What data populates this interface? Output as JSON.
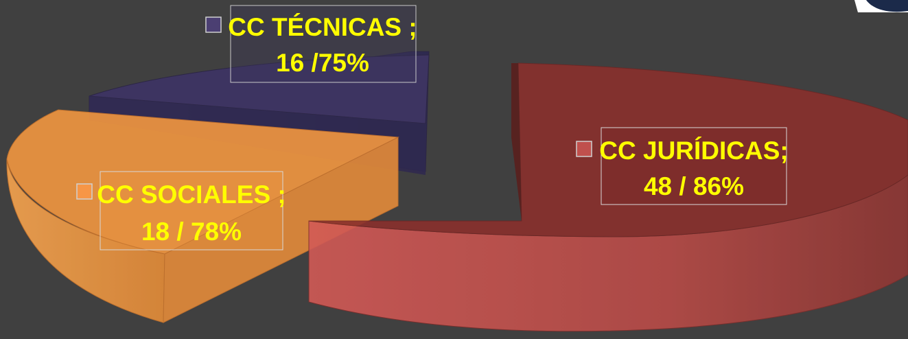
{
  "chart_data": {
    "type": "pie",
    "title": "",
    "slices": [
      {
        "name": "CC JURÍDICAS",
        "value": 48,
        "percent": "86%",
        "label_line1": "CC JURÍDICAS;",
        "label_line2": "48 / 86%",
        "color": "#C0504D"
      },
      {
        "name": "CC SOCIALES",
        "value": 18,
        "percent": "78%",
        "label_line1": "CC SOCIALES ;",
        "label_line2": "18 / 78%",
        "color": "#F79646"
      },
      {
        "name": "CC TÉCNICAS",
        "value": 16,
        "percent": "75%",
        "label_line1": "CC TÉCNICAS ;",
        "label_line2": "16 /75%",
        "color": "#4B3F72"
      }
    ],
    "exploded": true,
    "style": "3d",
    "label_color": "#FFFF00"
  }
}
